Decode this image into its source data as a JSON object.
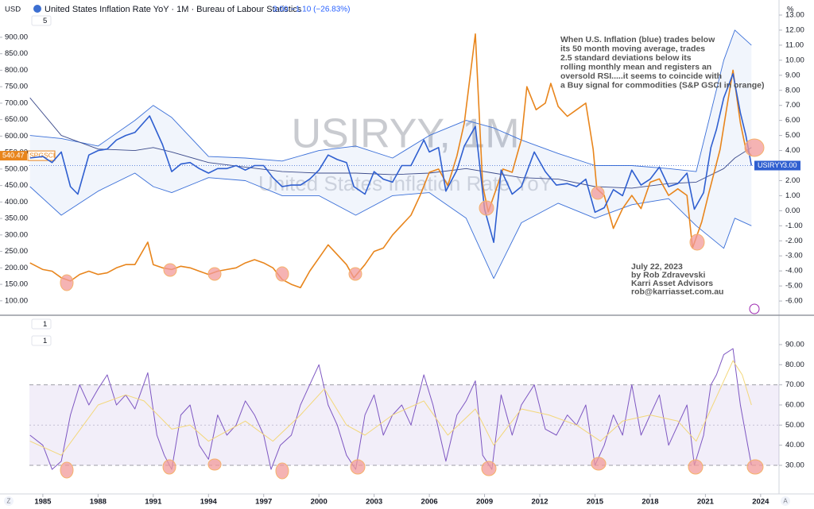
{
  "header": {
    "y_unit": "USD",
    "y2_unit": "%",
    "corner_labels": [
      "Z",
      "A"
    ]
  },
  "chart_data": [
    {
      "type": "line",
      "title": "United States Inflation Rate YoY · 1M · Bureau of Labour Statistics",
      "last_value_label": "3.00",
      "change_label": "−1.10 (−26.83%)",
      "indicator_label": "5",
      "watermark": "USIRYY, 1M",
      "watermark_subtitle": "United States Inflation Rate YoY",
      "annotations": [
        "When U.S. Inflation (blue) trades below",
        "its 50 month moving average, trades",
        "2.5 standard deviations below its",
        "rolling monthly mean and registers an",
        "oversold RSI.....it seems to coincide with",
        "a Buy signal for commodities (S&P GSCI in orange)"
      ],
      "note": [
        "July 22, 2023",
        "by Rob Zdravevski",
        "Karri Asset Advisors",
        "rob@karriasset.com.au"
      ],
      "xlim": [
        1984.27,
        2025
      ],
      "ylim": [
        61,
        977
      ],
      "yticks": [
        {
          "value": 100,
          "label": "100.00"
        },
        {
          "value": 150,
          "label": "150.00"
        },
        {
          "value": 200,
          "label": "200.00"
        },
        {
          "value": 250,
          "label": "250.00"
        },
        {
          "value": 300,
          "label": "300.00"
        },
        {
          "value": 350,
          "label": "350.00"
        },
        {
          "value": 400,
          "label": "400.00"
        },
        {
          "value": 450,
          "label": "450.00"
        },
        {
          "value": 500,
          "label": "500.00"
        },
        {
          "value": 550,
          "label": "550.00"
        },
        {
          "value": 600,
          "label": "600.00"
        },
        {
          "value": 650,
          "label": "650.00"
        },
        {
          "value": 700,
          "label": "700.00"
        },
        {
          "value": 750,
          "label": "750.00"
        },
        {
          "value": 800,
          "label": "800.00"
        },
        {
          "value": 850,
          "label": "850.00"
        },
        {
          "value": 900,
          "label": "900.00"
        }
      ],
      "y2lim": [
        -6.84,
        13.21
      ],
      "y2ticks": [
        {
          "value": -6,
          "label": "-6.00"
        },
        {
          "value": -5,
          "label": "-5.00"
        },
        {
          "value": -4,
          "label": "-4.00"
        },
        {
          "value": -3,
          "label": "-3.00"
        },
        {
          "value": -2,
          "label": "-2.00"
        },
        {
          "value": -1,
          "label": "-1.00"
        },
        {
          "value": 0,
          "label": "0.00"
        },
        {
          "value": 1,
          "label": "1.00"
        },
        {
          "value": 2,
          "label": "2.00"
        },
        {
          "value": 3,
          "label": "3.00"
        },
        {
          "value": 4,
          "label": "4.00"
        },
        {
          "value": 5,
          "label": "5.00"
        },
        {
          "value": 6,
          "label": "6.00"
        },
        {
          "value": 7,
          "label": "7.00"
        },
        {
          "value": 8,
          "label": "8.00"
        },
        {
          "value": 9,
          "label": "9.00"
        },
        {
          "value": 10,
          "label": "10.00"
        },
        {
          "value": 11,
          "label": "11.00"
        },
        {
          "value": 12,
          "label": "12.00"
        },
        {
          "value": 13,
          "label": "13.00"
        }
      ],
      "bands": {
        "axis": "y2",
        "color": "#3a6fd8",
        "x": [
          1984.3,
          1986,
          1988,
          1990,
          1991,
          1992,
          1994,
          1996,
          1998,
          2000,
          2002,
          2004,
          2006,
          2008,
          2009.5,
          2011,
          2013,
          2015,
          2017,
          2019,
          2020.5,
          2022,
          2022.6,
          2023.5
        ],
        "basis": [
          7.5,
          5.0,
          4.1,
          4.0,
          4.2,
          3.9,
          3.2,
          2.9,
          2.6,
          2.5,
          2.5,
          2.4,
          2.5,
          2.8,
          2.5,
          2.2,
          2.1,
          1.6,
          1.5,
          1.8,
          1.9,
          2.8,
          3.5,
          4.2
        ],
        "upper": [
          5.0,
          4.8,
          4.3,
          6.0,
          7.0,
          6.2,
          3.6,
          3.5,
          3.3,
          4.0,
          4.3,
          3.5,
          5.0,
          6.0,
          5.5,
          4.7,
          3.8,
          3.0,
          3.0,
          2.8,
          2.6,
          10.0,
          12.0,
          11.0
        ],
        "lower": [
          1.6,
          -0.3,
          1.3,
          2.5,
          1.6,
          1.2,
          2.2,
          2.0,
          1.0,
          1.0,
          -0.3,
          1.0,
          1.2,
          -0.5,
          -4.5,
          -0.8,
          0.5,
          -0.5,
          0.4,
          0.8,
          -1.0,
          -2.5,
          -0.5,
          -1.0
        ]
      },
      "series": [
        {
          "name": "SPGSCI",
          "color": "#e8851c",
          "last_label": "540.47",
          "x": [
            1984.3,
            1985,
            1985.5,
            1986,
            1986.5,
            1987,
            1987.5,
            1988,
            1988.5,
            1989,
            1989.5,
            1990,
            1990.7,
            1991,
            1991.5,
            1992,
            1992.5,
            1993,
            1993.5,
            1994,
            1994.5,
            1995,
            1995.5,
            1996,
            1996.5,
            1997,
            1997.5,
            1998,
            1998.5,
            1999,
            1999.5,
            2000,
            2000.5,
            2001,
            2001.5,
            2001.9,
            2002.5,
            2003,
            2003.5,
            2004,
            2004.5,
            2005,
            2005.5,
            2006,
            2006.5,
            2007,
            2007.5,
            2007.9,
            2008.5,
            2008.9,
            2009.2,
            2009.7,
            2010,
            2010.5,
            2011,
            2011.3,
            2011.8,
            2012.3,
            2012.6,
            2013,
            2013.5,
            2014,
            2014.5,
            2014.9,
            2015.1,
            2015.5,
            2016,
            2016.5,
            2017,
            2017.5,
            2018,
            2018.5,
            2019,
            2019.5,
            2020,
            2020.3,
            2020.8,
            2021.2,
            2021.8,
            2022.2,
            2022.5,
            2022.9,
            2023.2,
            2023.5
          ],
          "values": [
            215,
            195,
            190,
            170,
            160,
            180,
            190,
            180,
            185,
            200,
            210,
            210,
            278,
            210,
            200,
            195,
            205,
            200,
            190,
            180,
            190,
            195,
            200,
            215,
            225,
            215,
            200,
            165,
            150,
            140,
            190,
            230,
            270,
            240,
            210,
            170,
            210,
            250,
            260,
            300,
            330,
            360,
            420,
            490,
            500,
            450,
            540,
            640,
            910,
            450,
            370,
            450,
            500,
            490,
            590,
            750,
            680,
            700,
            760,
            690,
            660,
            680,
            700,
            560,
            440,
            420,
            320,
            380,
            420,
            380,
            460,
            470,
            420,
            440,
            420,
            260,
            340,
            430,
            560,
            700,
            800,
            640,
            560,
            540.47
          ]
        },
        {
          "name": "USIRYY",
          "color": "#2f5fd0",
          "axis": "y2",
          "last_label": "3.00",
          "x": [
            1984.3,
            1985,
            1985.5,
            1986,
            1986.5,
            1986.9,
            1987.5,
            1988,
            1988.5,
            1989,
            1989.5,
            1990,
            1990.8,
            1991.5,
            1992,
            1992.5,
            1993,
            1993.5,
            1994,
            1994.5,
            1995,
            1995.5,
            1996,
            1996.5,
            1997,
            1997.5,
            1998,
            1998.5,
            1999,
            1999.5,
            2000,
            2000.5,
            2001,
            2001.5,
            2001.9,
            2002.5,
            2003,
            2003.5,
            2004,
            2004.5,
            2005,
            2005.7,
            2006,
            2006.5,
            2006.9,
            2007.5,
            2007.9,
            2008.5,
            2009,
            2009.5,
            2009.9,
            2010.5,
            2011,
            2011.7,
            2012.3,
            2012.9,
            2013.5,
            2014,
            2014.5,
            2015,
            2015.5,
            2016,
            2016.5,
            2017,
            2017.5,
            2018,
            2018.5,
            2019,
            2019.5,
            2020,
            2020.4,
            2020.9,
            2021.3,
            2021.6,
            2022,
            2022.5,
            2022.9,
            2023.2,
            2023.5
          ],
          "values": [
            3.5,
            3.6,
            3.2,
            3.9,
            1.6,
            1.1,
            3.7,
            4.0,
            4.1,
            4.7,
            5.0,
            5.2,
            6.3,
            4.4,
            2.6,
            3.1,
            3.2,
            2.8,
            2.5,
            2.8,
            2.8,
            3.0,
            2.7,
            3.0,
            3.0,
            2.2,
            1.6,
            1.7,
            1.7,
            2.1,
            2.7,
            3.7,
            3.4,
            3.2,
            1.6,
            1.1,
            2.6,
            2.1,
            1.9,
            3.0,
            3.0,
            4.7,
            3.9,
            4.2,
            1.3,
            2.7,
            4.3,
            5.6,
            0.1,
            -2.1,
            2.7,
            1.1,
            1.6,
            3.9,
            2.6,
            1.7,
            1.8,
            1.6,
            2.1,
            -0.1,
            0.2,
            1.4,
            1.0,
            2.7,
            1.7,
            2.1,
            2.9,
            1.6,
            1.8,
            2.5,
            0.1,
            1.2,
            4.2,
            5.4,
            7.5,
            9.1,
            6.5,
            5.0,
            3.0
          ]
        }
      ]
    },
    {
      "type": "line",
      "indicator_labels": [
        "1",
        "1"
      ],
      "xlim": [
        1984.27,
        2025
      ],
      "xticks": [
        1985,
        1988,
        1991,
        1994,
        1997,
        2000,
        2003,
        2006,
        2009,
        2012,
        2015,
        2018,
        2021,
        2024
      ],
      "ylim": [
        15.8,
        95.5
      ],
      "yticks": [
        {
          "value": 30,
          "label": "30.00"
        },
        {
          "value": 40,
          "label": "40.00"
        },
        {
          "value": 50,
          "label": "50.00"
        },
        {
          "value": 60,
          "label": "60.00"
        },
        {
          "value": 70,
          "label": "70.00"
        },
        {
          "value": 80,
          "label": "80.00"
        },
        {
          "value": 90,
          "label": "90.00"
        }
      ],
      "band": [
        30,
        70
      ],
      "midline": 50,
      "series": [
        {
          "color": "#7e57c2",
          "x": [
            1984.3,
            1985,
            1985.5,
            1986,
            1986.5,
            1987,
            1987.5,
            1988,
            1988.5,
            1989,
            1989.5,
            1990,
            1990.7,
            1991.2,
            1991.6,
            1992,
            1992.5,
            1993,
            1993.5,
            1994,
            1994.5,
            1995,
            1995.5,
            1996,
            1996.5,
            1997,
            1997.4,
            1997.9,
            1998.5,
            1999,
            1999.5,
            2000,
            2000.5,
            2001,
            2001.5,
            2002,
            2002.5,
            2003,
            2003.5,
            2004,
            2004.5,
            2005,
            2005.7,
            2006.2,
            2006.9,
            2007.5,
            2008,
            2008.5,
            2008.9,
            2009.4,
            2009.9,
            2010.5,
            2011,
            2011.7,
            2012.3,
            2012.9,
            2013.5,
            2014,
            2014.5,
            2015,
            2015.5,
            2016,
            2016.5,
            2017,
            2017.5,
            2018,
            2018.5,
            2019,
            2019.5,
            2020,
            2020.4,
            2020.9,
            2021.3,
            2021.6,
            2022,
            2022.5,
            2022.9,
            2023.2,
            2023.5
          ],
          "values": [
            45,
            40,
            28,
            32,
            55,
            70,
            60,
            68,
            75,
            60,
            65,
            58,
            76,
            45,
            35,
            28,
            55,
            60,
            40,
            33,
            55,
            45,
            50,
            62,
            55,
            45,
            28,
            40,
            45,
            60,
            70,
            80,
            60,
            50,
            35,
            28,
            55,
            65,
            45,
            55,
            60,
            50,
            75,
            60,
            32,
            55,
            62,
            72,
            35,
            28,
            65,
            45,
            60,
            70,
            48,
            45,
            55,
            50,
            60,
            30,
            40,
            55,
            45,
            70,
            45,
            55,
            65,
            40,
            50,
            60,
            30,
            45,
            70,
            75,
            85,
            88,
            60,
            45,
            30
          ]
        },
        {
          "color": "#f3d77a",
          "x": [
            1984.3,
            1986,
            1988,
            1989.5,
            1990.5,
            1992,
            1993,
            1994,
            1996,
            1997.5,
            1999,
            2000.3,
            2001.5,
            2002.5,
            2004,
            2005.7,
            2007,
            2008.5,
            2009.5,
            2011,
            2012.5,
            2014,
            2015.3,
            2016.5,
            2018,
            2019.5,
            2020.5,
            2021.5,
            2022.5,
            2023,
            2023.5
          ],
          "values": [
            42,
            35,
            60,
            65,
            62,
            48,
            50,
            42,
            52,
            42,
            55,
            68,
            50,
            45,
            55,
            62,
            45,
            58,
            40,
            58,
            55,
            50,
            42,
            52,
            55,
            52,
            42,
            62,
            82,
            75,
            60
          ]
        }
      ]
    }
  ]
}
